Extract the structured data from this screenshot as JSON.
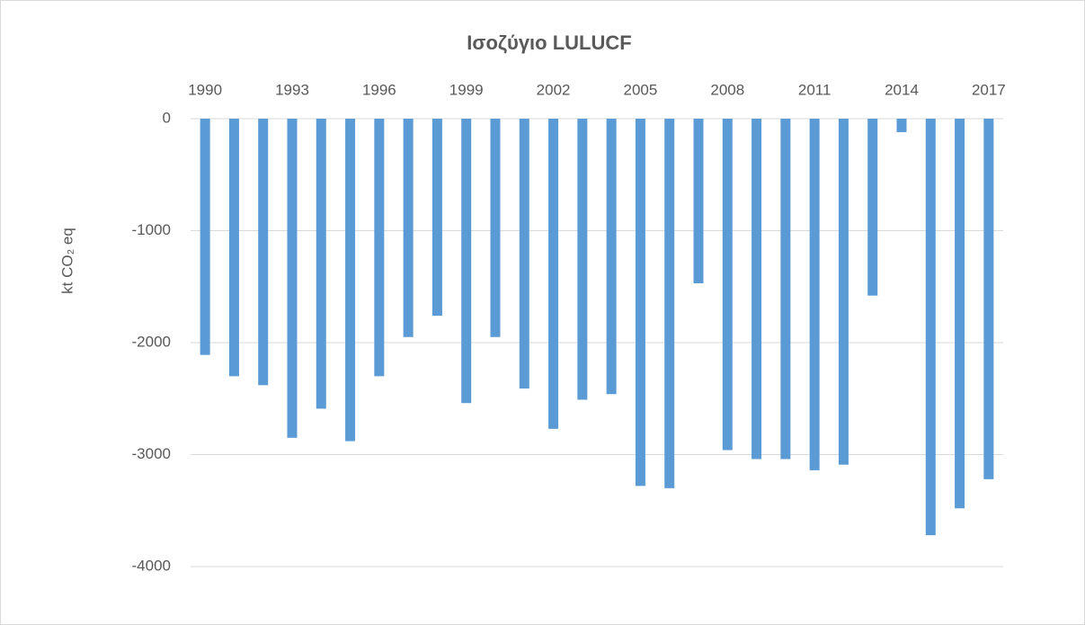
{
  "chart_data": {
    "type": "bar",
    "title": "Ισοζύγιο LULUCF",
    "y_label": "kt CO₂ eq",
    "categories": [
      "1990",
      null,
      null,
      "1993",
      null,
      null,
      "1996",
      null,
      null,
      "1999",
      null,
      null,
      "2002",
      null,
      null,
      "2005",
      null,
      null,
      "2008",
      null,
      null,
      "2011",
      null,
      null,
      "2014",
      null,
      null,
      "2017"
    ],
    "values": [
      -2110,
      -2300,
      -2380,
      -2850,
      -2590,
      -2880,
      -2300,
      -1950,
      -1760,
      -2540,
      -1950,
      -2410,
      -2770,
      -2510,
      -2460,
      -3280,
      -3300,
      -1470,
      -2960,
      -3040,
      -3040,
      -3140,
      -3090,
      -1580,
      -120,
      -3720,
      -3480,
      -3220
    ],
    "color": "#5b9bd5",
    "ylim": [
      -4000,
      0
    ],
    "yticks": [
      0,
      -1000,
      -2000,
      -3000,
      -4000
    ],
    "grid": true
  }
}
